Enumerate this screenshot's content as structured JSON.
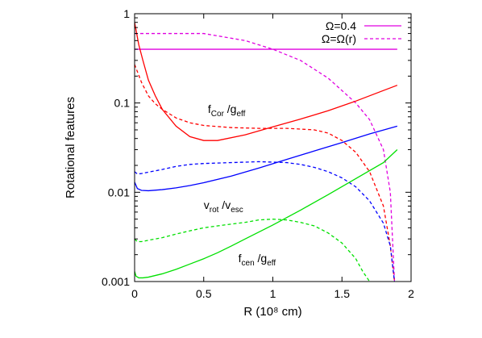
{
  "chart_data": {
    "type": "line",
    "xlabel": "R (10⁸ cm)",
    "ylabel": "Rotational features",
    "xlim": [
      0,
      2
    ],
    "ylim": [
      0.001,
      1
    ],
    "yscale": "log",
    "grid": false,
    "legend_position": "top-right",
    "xticks": [
      {
        "value": 0,
        "label": "0"
      },
      {
        "value": 0.5,
        "label": "0.5"
      },
      {
        "value": 1,
        "label": "1"
      },
      {
        "value": 1.5,
        "label": "1.5"
      },
      {
        "value": 2,
        "label": "2"
      }
    ],
    "yticks": [
      {
        "value": 0.001,
        "label": "0.001"
      },
      {
        "value": 0.01,
        "label": "0.01"
      },
      {
        "value": 0.1,
        "label": "0.1"
      },
      {
        "value": 1,
        "label": "1"
      }
    ],
    "legend": [
      {
        "label": "Ω=0.4",
        "color": "#e000e0",
        "dash": "solid"
      },
      {
        "label": "Ω=Ω(r)",
        "color": "#e000e0",
        "dash": "dashed"
      }
    ],
    "annotations": [
      {
        "id": "fcor",
        "main": "f",
        "sub1": "Cor",
        "sep": " /g",
        "sub2": "eff",
        "x": 0.53,
        "y": 0.077
      },
      {
        "id": "vrot",
        "main": "v",
        "sub1": "rot",
        "sep": " /v",
        "sub2": "esc",
        "x": 0.5,
        "y": 0.0065
      },
      {
        "id": "fcen",
        "main": "f",
        "sub1": "cen",
        "sep": " /g",
        "sub2": "eff",
        "x": 0.75,
        "y": 0.00165
      }
    ],
    "series": [
      {
        "id": "omega-solid",
        "color": "#e000e0",
        "dash": "solid",
        "x": [
          0.0,
          1.9
        ],
        "y": [
          0.4,
          0.4
        ]
      },
      {
        "id": "omega-dashed",
        "color": "#e000e0",
        "dash": "dashed",
        "x": [
          0.0,
          0.5,
          0.8,
          1.0,
          1.2,
          1.4,
          1.6,
          1.7,
          1.8,
          1.85,
          1.88
        ],
        "y": [
          0.6,
          0.6,
          0.5,
          0.4,
          0.3,
          0.19,
          0.1,
          0.065,
          0.03,
          0.01,
          0.001
        ]
      },
      {
        "id": "fcor-solid",
        "color": "#ff0000",
        "dash": "solid",
        "x": [
          0.0,
          0.03,
          0.06,
          0.1,
          0.15,
          0.2,
          0.3,
          0.4,
          0.5,
          0.6,
          0.8,
          1.0,
          1.2,
          1.4,
          1.6,
          1.8,
          1.9
        ],
        "y": [
          0.8,
          0.45,
          0.3,
          0.18,
          0.12,
          0.085,
          0.055,
          0.042,
          0.038,
          0.038,
          0.044,
          0.054,
          0.066,
          0.082,
          0.105,
          0.138,
          0.158
        ]
      },
      {
        "id": "fcor-dashed",
        "color": "#ff0000",
        "dash": "dashed",
        "x": [
          0.0,
          0.05,
          0.1,
          0.15,
          0.2,
          0.3,
          0.4,
          0.5,
          0.7,
          0.9,
          1.1,
          1.3,
          1.4,
          1.5,
          1.6,
          1.7,
          1.8,
          1.85,
          1.88
        ],
        "y": [
          0.27,
          0.17,
          0.12,
          0.098,
          0.085,
          0.068,
          0.06,
          0.056,
          0.053,
          0.052,
          0.052,
          0.05,
          0.046,
          0.038,
          0.028,
          0.017,
          0.007,
          0.0025,
          0.001
        ]
      },
      {
        "id": "vrot-solid",
        "color": "#0000ff",
        "dash": "solid",
        "x": [
          0.0,
          0.02,
          0.05,
          0.1,
          0.2,
          0.3,
          0.4,
          0.5,
          0.7,
          0.9,
          1.1,
          1.3,
          1.5,
          1.7,
          1.9
        ],
        "y": [
          0.013,
          0.011,
          0.0105,
          0.0104,
          0.0107,
          0.0112,
          0.0119,
          0.0128,
          0.0152,
          0.0187,
          0.0233,
          0.029,
          0.036,
          0.045,
          0.055
        ]
      },
      {
        "id": "vrot-dashed",
        "color": "#0000ff",
        "dash": "dashed",
        "x": [
          0.0,
          0.02,
          0.05,
          0.1,
          0.2,
          0.3,
          0.4,
          0.5,
          0.7,
          0.9,
          1.1,
          1.2,
          1.3,
          1.4,
          1.5,
          1.6,
          1.7,
          1.8,
          1.85,
          1.88
        ],
        "y": [
          0.017,
          0.016,
          0.0162,
          0.0168,
          0.018,
          0.0195,
          0.0205,
          0.021,
          0.0215,
          0.022,
          0.0215,
          0.0205,
          0.019,
          0.017,
          0.0145,
          0.0115,
          0.008,
          0.0045,
          0.0025,
          0.001
        ]
      },
      {
        "id": "fcen-solid",
        "color": "#00e000",
        "dash": "solid",
        "x": [
          0.0,
          0.01,
          0.03,
          0.06,
          0.1,
          0.2,
          0.3,
          0.4,
          0.5,
          0.6,
          0.7,
          0.8,
          1.0,
          1.2,
          1.4,
          1.6,
          1.8,
          1.9
        ],
        "y": [
          0.0013,
          0.00115,
          0.0011,
          0.0011,
          0.00112,
          0.00122,
          0.00137,
          0.00157,
          0.0018,
          0.0021,
          0.0025,
          0.003,
          0.0043,
          0.0063,
          0.0094,
          0.0142,
          0.0215,
          0.03
        ]
      },
      {
        "id": "fcen-dashed",
        "color": "#00e000",
        "dash": "dashed",
        "x": [
          0.0,
          0.02,
          0.05,
          0.1,
          0.2,
          0.3,
          0.4,
          0.5,
          0.6,
          0.7,
          0.8,
          0.9,
          1.0,
          1.1,
          1.2,
          1.3,
          1.4,
          1.5,
          1.6,
          1.65,
          1.7
        ],
        "y": [
          0.003,
          0.0028,
          0.0028,
          0.0029,
          0.0031,
          0.0034,
          0.0037,
          0.004,
          0.0042,
          0.0044,
          0.0046,
          0.0049,
          0.005,
          0.0049,
          0.0046,
          0.0042,
          0.0035,
          0.0027,
          0.0018,
          0.0013,
          0.001
        ]
      }
    ]
  }
}
